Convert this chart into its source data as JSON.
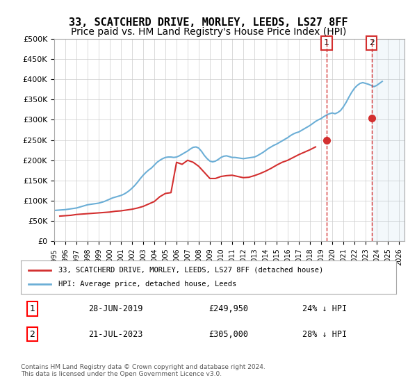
{
  "title": "33, SCATCHERD DRIVE, MORLEY, LEEDS, LS27 8FF",
  "subtitle": "Price paid vs. HM Land Registry's House Price Index (HPI)",
  "title_fontsize": 11,
  "subtitle_fontsize": 10,
  "ylabel_ticks": [
    "£0",
    "£50K",
    "£100K",
    "£150K",
    "£200K",
    "£250K",
    "£300K",
    "£350K",
    "£400K",
    "£450K",
    "£500K"
  ],
  "ytick_values": [
    0,
    50000,
    100000,
    150000,
    200000,
    250000,
    300000,
    350000,
    400000,
    450000,
    500000
  ],
  "ylim": [
    0,
    500000
  ],
  "xlim_start": 1995.0,
  "xlim_end": 2026.5,
  "hpi_color": "#6baed6",
  "price_color": "#d32f2f",
  "annotation_color_1": "#d32f2f",
  "annotation_color_2": "#d32f2f",
  "annotation_box_color": "#d32f2f",
  "dashed_line_color": "#d32f2f",
  "legend_label_red": "33, SCATCHERD DRIVE, MORLEY, LEEDS, LS27 8FF (detached house)",
  "legend_label_blue": "HPI: Average price, detached house, Leeds",
  "transaction_1_date": "28-JUN-2019",
  "transaction_1_price": 249950,
  "transaction_1_pct": "24% ↓ HPI",
  "transaction_1_year": 2019.49,
  "transaction_2_date": "21-JUL-2023",
  "transaction_2_price": 305000,
  "transaction_2_pct": "28% ↓ HPI",
  "transaction_2_year": 2023.54,
  "footer_text": "Contains HM Land Registry data © Crown copyright and database right 2024.\nThis data is licensed under the Open Government Licence v3.0.",
  "hpi_data": {
    "years": [
      1995.0,
      1995.25,
      1995.5,
      1995.75,
      1996.0,
      1996.25,
      1996.5,
      1996.75,
      1997.0,
      1997.25,
      1997.5,
      1997.75,
      1998.0,
      1998.25,
      1998.5,
      1998.75,
      1999.0,
      1999.25,
      1999.5,
      1999.75,
      2000.0,
      2000.25,
      2000.5,
      2000.75,
      2001.0,
      2001.25,
      2001.5,
      2001.75,
      2002.0,
      2002.25,
      2002.5,
      2002.75,
      2003.0,
      2003.25,
      2003.5,
      2003.75,
      2004.0,
      2004.25,
      2004.5,
      2004.75,
      2005.0,
      2005.25,
      2005.5,
      2005.75,
      2006.0,
      2006.25,
      2006.5,
      2006.75,
      2007.0,
      2007.25,
      2007.5,
      2007.75,
      2008.0,
      2008.25,
      2008.5,
      2008.75,
      2009.0,
      2009.25,
      2009.5,
      2009.75,
      2010.0,
      2010.25,
      2010.5,
      2010.75,
      2011.0,
      2011.25,
      2011.5,
      2011.75,
      2012.0,
      2012.25,
      2012.5,
      2012.75,
      2013.0,
      2013.25,
      2013.5,
      2013.75,
      2014.0,
      2014.25,
      2014.5,
      2014.75,
      2015.0,
      2015.25,
      2015.5,
      2015.75,
      2016.0,
      2016.25,
      2016.5,
      2016.75,
      2017.0,
      2017.25,
      2017.5,
      2017.75,
      2018.0,
      2018.25,
      2018.5,
      2018.75,
      2019.0,
      2019.25,
      2019.5,
      2019.75,
      2020.0,
      2020.25,
      2020.5,
      2020.75,
      2021.0,
      2021.25,
      2021.5,
      2021.75,
      2022.0,
      2022.25,
      2022.5,
      2022.75,
      2023.0,
      2023.25,
      2023.5,
      2023.75,
      2024.0,
      2024.25,
      2024.5
    ],
    "values": [
      76000,
      76500,
      77000,
      77500,
      78000,
      79000,
      80000,
      81000,
      82000,
      84000,
      86000,
      88000,
      90000,
      91000,
      92000,
      93000,
      94000,
      96000,
      98000,
      101000,
      104000,
      107000,
      109000,
      111000,
      113000,
      116000,
      120000,
      125000,
      131000,
      138000,
      146000,
      155000,
      163000,
      170000,
      176000,
      181000,
      188000,
      195000,
      200000,
      204000,
      207000,
      208000,
      208000,
      207000,
      208000,
      211000,
      215000,
      219000,
      223000,
      228000,
      232000,
      233000,
      230000,
      222000,
      212000,
      204000,
      198000,
      196000,
      198000,
      202000,
      207000,
      210000,
      211000,
      209000,
      207000,
      207000,
      206000,
      205000,
      204000,
      205000,
      206000,
      207000,
      208000,
      211000,
      215000,
      219000,
      224000,
      229000,
      233000,
      237000,
      240000,
      244000,
      248000,
      252000,
      256000,
      261000,
      265000,
      268000,
      270000,
      274000,
      278000,
      282000,
      286000,
      291000,
      296000,
      300000,
      303000,
      308000,
      312000,
      315000,
      317000,
      315000,
      318000,
      323000,
      332000,
      343000,
      356000,
      368000,
      378000,
      385000,
      390000,
      392000,
      390000,
      388000,
      385000,
      382000,
      385000,
      390000,
      395000
    ]
  },
  "price_paid_data": {
    "years": [
      1995.5,
      1996.0,
      1996.5,
      1997.0,
      1997.5,
      1998.0,
      1998.5,
      1999.0,
      1999.5,
      2000.0,
      2000.5,
      2001.0,
      2001.5,
      2002.0,
      2002.5,
      2003.0,
      2003.5,
      2004.0,
      2004.5,
      2005.0,
      2005.5,
      2006.0,
      2006.5,
      2007.0,
      2007.5,
      2008.0,
      2008.5,
      2009.0,
      2009.5,
      2010.0,
      2010.5,
      2011.0,
      2011.5,
      2012.0,
      2012.5,
      2013.0,
      2013.5,
      2014.0,
      2014.5,
      2015.0,
      2015.5,
      2016.0,
      2016.5,
      2017.0,
      2017.5,
      2018.0,
      2018.5,
      2019.49,
      2023.54
    ],
    "values": [
      62000,
      63000,
      64000,
      66000,
      67000,
      68000,
      69000,
      70000,
      71000,
      72000,
      74000,
      75000,
      77000,
      79000,
      82000,
      86000,
      92000,
      98000,
      110000,
      118000,
      120000,
      195000,
      190000,
      200000,
      195000,
      185000,
      170000,
      155000,
      155000,
      160000,
      162000,
      163000,
      160000,
      157000,
      158000,
      162000,
      167000,
      173000,
      180000,
      188000,
      195000,
      200000,
      207000,
      214000,
      220000,
      226000,
      233000,
      249950,
      305000
    ]
  }
}
